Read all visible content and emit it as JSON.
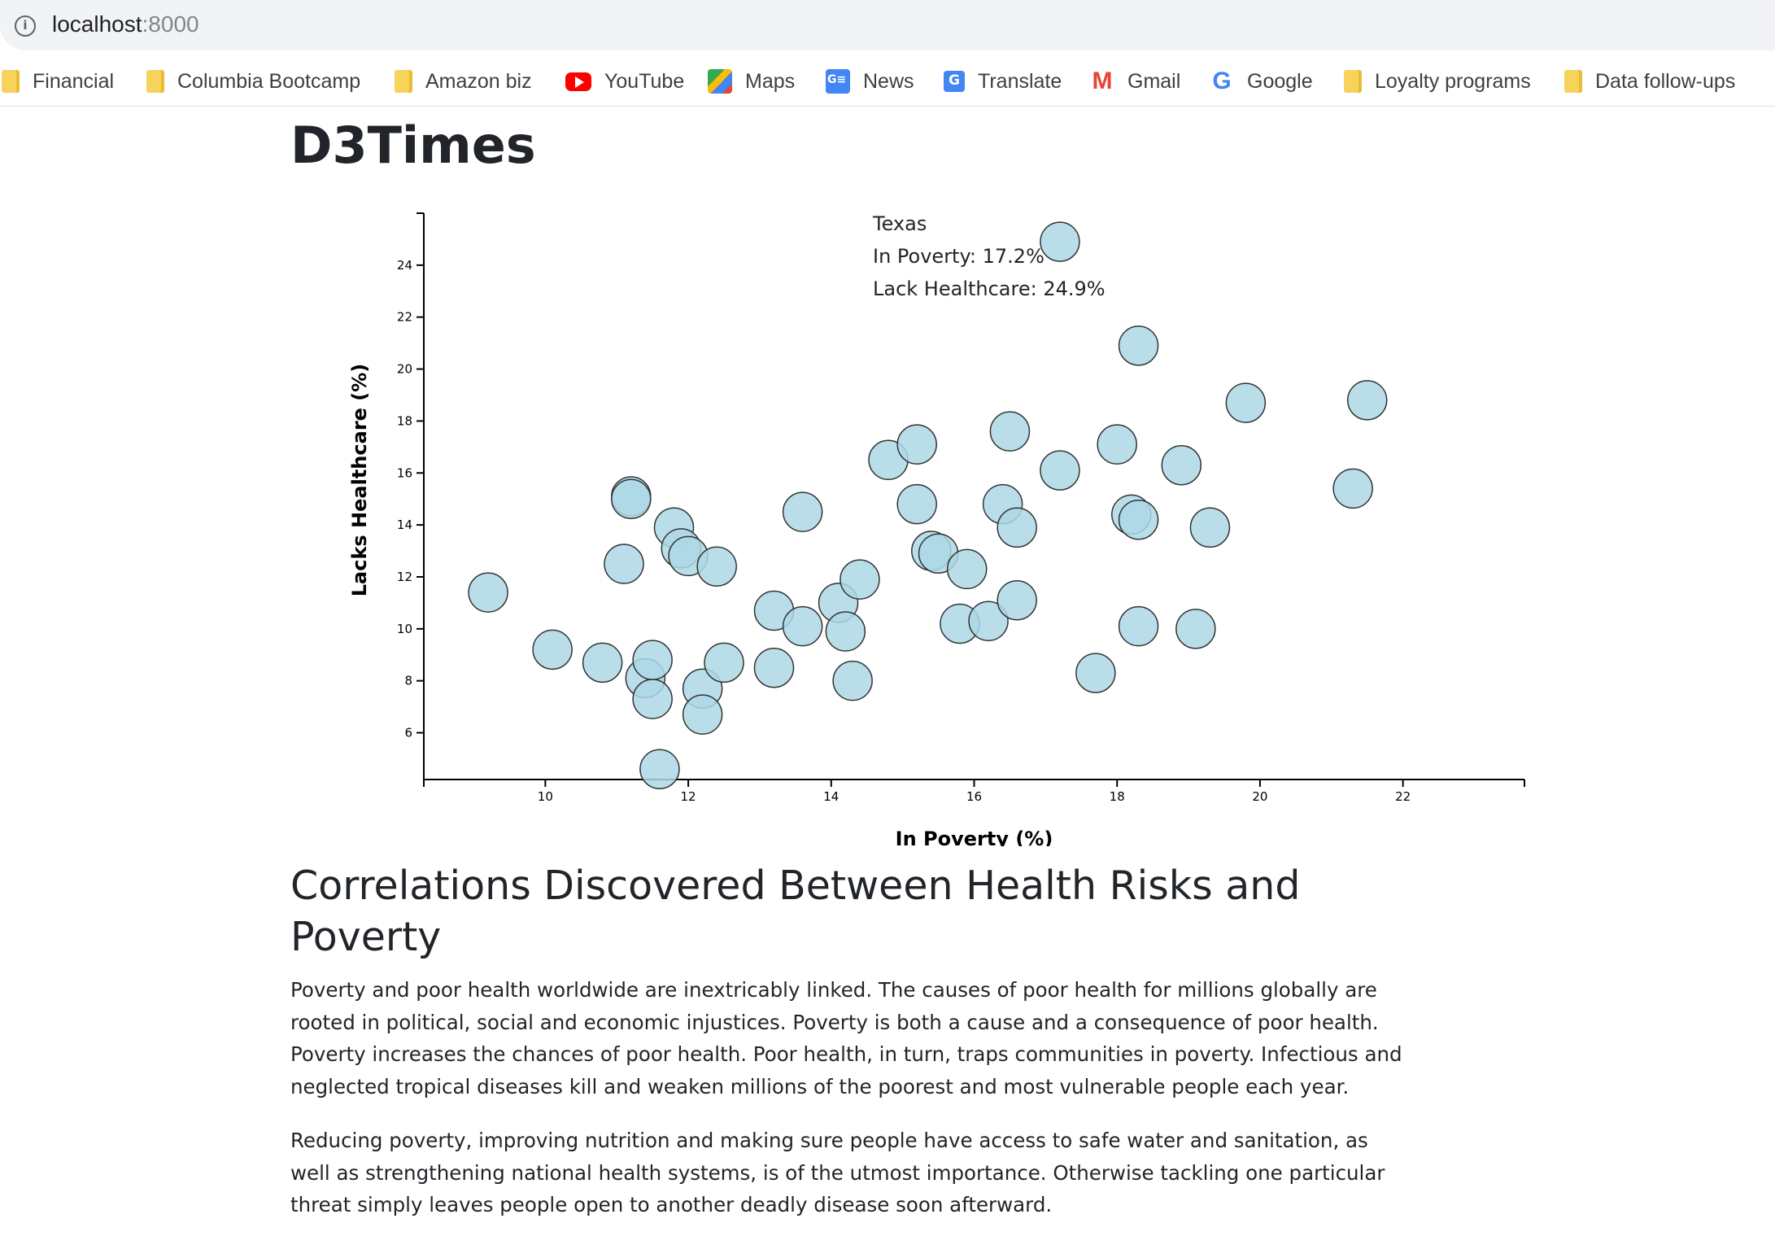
{
  "browser": {
    "url_host": "localhost",
    "url_port": ":8000",
    "bookmarks": [
      {
        "label": "Financial",
        "icon": "folder-icon"
      },
      {
        "label": "Columbia Bootcamp",
        "icon": "folder-icon"
      },
      {
        "label": "Amazon biz",
        "icon": "folder-icon"
      },
      {
        "label": "YouTube",
        "icon": "youtube-icon"
      },
      {
        "label": "Maps",
        "icon": "maps-icon"
      },
      {
        "label": "News",
        "icon": "news-icon"
      },
      {
        "label": "Translate",
        "icon": "translate-icon"
      },
      {
        "label": "Gmail",
        "icon": "gmail-icon"
      },
      {
        "label": "Google",
        "icon": "google-icon"
      },
      {
        "label": "Loyalty programs",
        "icon": "folder-icon"
      },
      {
        "label": "Data follow-ups",
        "icon": "folder-icon"
      }
    ]
  },
  "page": {
    "title": "D3Times",
    "section_title": "Correlations Discovered Between Health Risks and Poverty",
    "paragraphs": [
      "Poverty and poor health worldwide are inextricably linked. The causes of poor health for millions globally are rooted in political, social and economic injustices. Poverty is both a cause and a consequence of poor health. Poverty increases the chances of poor health. Poor health, in turn, traps communities in poverty. Infectious and neglected tropical diseases kill and weaken millions of the poorest and most vulnerable people each year.",
      "Reducing poverty, improving nutrition and making sure people have access to safe water and sanitation, as well as strengthening national health systems, is of the utmost importance. Otherwise tackling one particular threat simply leaves people open to another deadly disease soon afterward."
    ]
  },
  "tooltip": {
    "state": "Texas",
    "poverty": "In Poverty: 17.2%",
    "healthcare": "Lack Healthcare: 24.9%"
  },
  "chart_data": {
    "type": "scatter",
    "xlabel": "In Poverty (%)",
    "ylabel": "Lacks Healthcare (%)",
    "xlim": [
      8.3,
      23.7
    ],
    "ylim": [
      4.2,
      26.0
    ],
    "xticks": [
      10,
      12,
      14,
      16,
      18,
      20,
      22
    ],
    "yticks": [
      6,
      8,
      10,
      12,
      14,
      16,
      18,
      20,
      22,
      24
    ],
    "point_color": "#add8e6",
    "point_stroke": "#333333",
    "points": [
      {
        "x": 9.2,
        "y": 11.4
      },
      {
        "x": 10.1,
        "y": 9.2
      },
      {
        "x": 10.8,
        "y": 8.7
      },
      {
        "x": 11.1,
        "y": 12.5
      },
      {
        "x": 11.2,
        "y": 15.1
      },
      {
        "x": 11.2,
        "y": 15.0
      },
      {
        "x": 11.4,
        "y": 8.1
      },
      {
        "x": 11.5,
        "y": 8.8
      },
      {
        "x": 11.5,
        "y": 7.3
      },
      {
        "x": 11.6,
        "y": 4.6
      },
      {
        "x": 11.8,
        "y": 13.9
      },
      {
        "x": 11.9,
        "y": 13.1
      },
      {
        "x": 12.0,
        "y": 12.8
      },
      {
        "x": 12.2,
        "y": 7.7
      },
      {
        "x": 12.2,
        "y": 6.7
      },
      {
        "x": 12.4,
        "y": 12.4
      },
      {
        "x": 12.5,
        "y": 8.7
      },
      {
        "x": 13.2,
        "y": 10.7
      },
      {
        "x": 13.2,
        "y": 8.5
      },
      {
        "x": 13.6,
        "y": 14.5
      },
      {
        "x": 13.6,
        "y": 10.1
      },
      {
        "x": 14.1,
        "y": 11.0
      },
      {
        "x": 14.2,
        "y": 9.9
      },
      {
        "x": 14.3,
        "y": 8.0
      },
      {
        "x": 14.4,
        "y": 11.9
      },
      {
        "x": 14.8,
        "y": 16.5
      },
      {
        "x": 15.2,
        "y": 17.1
      },
      {
        "x": 15.2,
        "y": 14.8
      },
      {
        "x": 15.4,
        "y": 13.0
      },
      {
        "x": 15.5,
        "y": 12.9
      },
      {
        "x": 15.8,
        "y": 10.2
      },
      {
        "x": 15.9,
        "y": 12.3
      },
      {
        "x": 16.2,
        "y": 10.3
      },
      {
        "x": 16.4,
        "y": 14.8
      },
      {
        "x": 16.5,
        "y": 17.6
      },
      {
        "x": 16.6,
        "y": 13.9
      },
      {
        "x": 16.6,
        "y": 11.1
      },
      {
        "x": 17.2,
        "y": 24.9
      },
      {
        "x": 17.2,
        "y": 16.1
      },
      {
        "x": 17.7,
        "y": 8.3
      },
      {
        "x": 18.0,
        "y": 17.1
      },
      {
        "x": 18.2,
        "y": 14.4
      },
      {
        "x": 18.3,
        "y": 20.9
      },
      {
        "x": 18.3,
        "y": 14.2
      },
      {
        "x": 18.3,
        "y": 10.1
      },
      {
        "x": 18.9,
        "y": 16.3
      },
      {
        "x": 19.1,
        "y": 10.0
      },
      {
        "x": 19.3,
        "y": 13.9
      },
      {
        "x": 19.8,
        "y": 18.7
      },
      {
        "x": 21.3,
        "y": 15.4
      },
      {
        "x": 21.5,
        "y": 18.8
      }
    ]
  }
}
